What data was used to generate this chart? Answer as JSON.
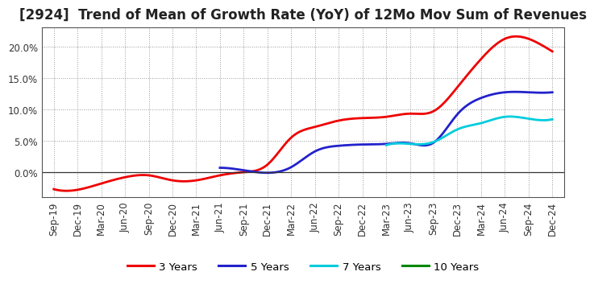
{
  "title": "[2924]  Trend of Mean of Growth Rate (YoY) of 12Mo Mov Sum of Revenues",
  "x_labels": [
    "Sep-19",
    "Dec-19",
    "Mar-20",
    "Jun-20",
    "Sep-20",
    "Dec-20",
    "Mar-21",
    "Jun-21",
    "Sep-21",
    "Dec-21",
    "Mar-22",
    "Jun-22",
    "Sep-22",
    "Dec-22",
    "Mar-23",
    "Jun-23",
    "Sep-23",
    "Dec-23",
    "Mar-24",
    "Jun-24",
    "Sep-24",
    "Dec-24"
  ],
  "y_ticks": [
    0.0,
    0.05,
    0.1,
    0.15,
    0.2
  ],
  "ylim": [
    -0.04,
    0.23
  ],
  "series": {
    "3 Years": {
      "color": "#ee0000",
      "linewidth": 2.0,
      "values": [
        -0.027,
        -0.028,
        -0.018,
        -0.008,
        -0.005,
        -0.013,
        -0.013,
        -0.005,
        0.0,
        0.012,
        0.055,
        0.072,
        0.082,
        0.086,
        0.088,
        0.093,
        0.097,
        0.135,
        0.18,
        0.212,
        0.212,
        0.192
      ]
    },
    "5 Years": {
      "color": "#2222cc",
      "linewidth": 2.0,
      "values": [
        null,
        null,
        null,
        null,
        null,
        null,
        null,
        0.007,
        0.003,
        -0.001,
        0.008,
        0.033,
        0.042,
        0.044,
        0.045,
        0.046,
        0.047,
        0.092,
        0.118,
        0.127,
        0.127,
        0.127
      ]
    },
    "7 Years": {
      "color": "#00ccdd",
      "linewidth": 2.0,
      "values": [
        null,
        null,
        null,
        null,
        null,
        null,
        null,
        null,
        null,
        null,
        null,
        null,
        null,
        null,
        0.043,
        0.045,
        0.048,
        0.068,
        0.078,
        0.088,
        0.085,
        0.084
      ]
    },
    "10 Years": {
      "color": "#008800",
      "linewidth": 2.0,
      "values": [
        null,
        null,
        null,
        null,
        null,
        null,
        null,
        null,
        null,
        null,
        null,
        null,
        null,
        null,
        null,
        null,
        null,
        null,
        null,
        null,
        null,
        null
      ]
    }
  },
  "legend_labels": [
    "3 Years",
    "5 Years",
    "7 Years",
    "10 Years"
  ],
  "legend_colors": [
    "#ee0000",
    "#2222cc",
    "#00ccdd",
    "#008800"
  ],
  "background_color": "#ffffff",
  "grid_color": "#999999",
  "title_fontsize": 12,
  "tick_fontsize": 8.5
}
